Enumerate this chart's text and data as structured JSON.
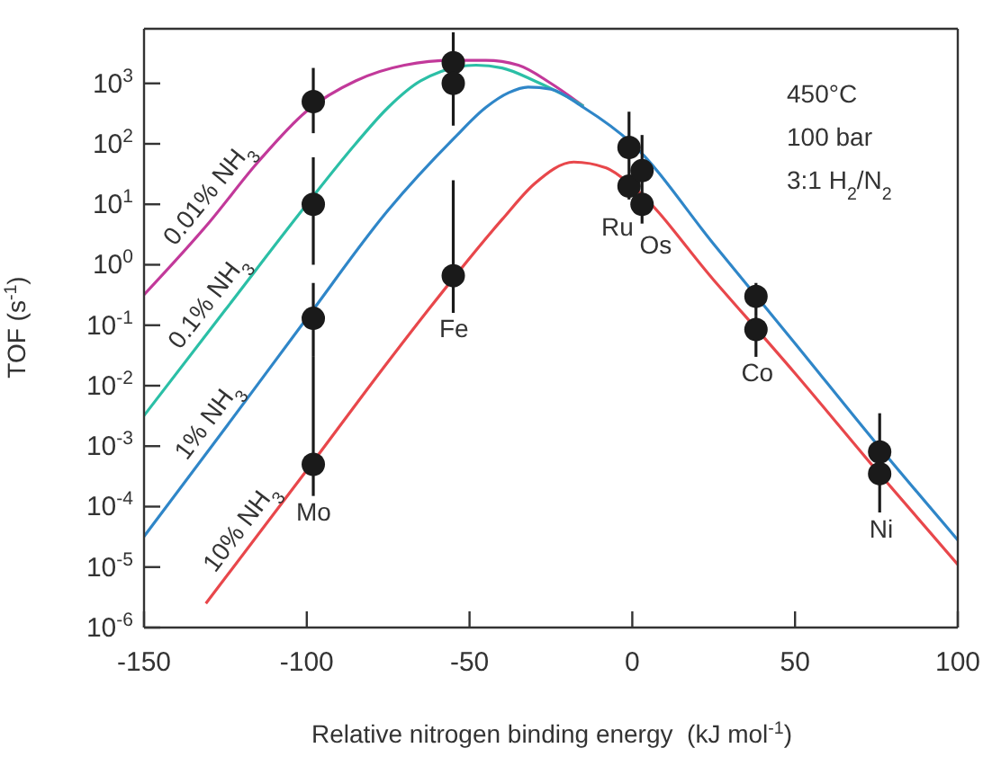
{
  "chart_data": {
    "type": "line",
    "xlabel": "Relative nitrogen binding energy  (kJ mol$^{-1}$)",
    "ylabel": "TOF (s$^{-1}$)",
    "xlim": [
      -150,
      100
    ],
    "xticks": [
      -150,
      -100,
      -50,
      0,
      50,
      100
    ],
    "ylim": [
      1e-06,
      8000
    ],
    "yticks": [
      {
        "value": 1e-06,
        "label": "10$^{-6}$"
      },
      {
        "value": 1e-05,
        "label": "10$^{-5}$"
      },
      {
        "value": 0.0001,
        "label": "10$^{-4}$"
      },
      {
        "value": 0.001,
        "label": "10$^{-3}$"
      },
      {
        "value": 0.01,
        "label": "10$^{-2}$"
      },
      {
        "value": 0.1,
        "label": "10$^{-1}$"
      },
      {
        "value": 1,
        "label": "10$^{0}$"
      },
      {
        "value": 10,
        "label": "10$^{1}$"
      },
      {
        "value": 100,
        "label": "10$^{2}$"
      },
      {
        "value": 1000,
        "label": "10$^{3}$"
      }
    ],
    "log": "y",
    "marker": "none",
    "line_style": "solid",
    "series": [
      {
        "name": "0.01% NH$_{3}$",
        "color": "#c2399a",
        "x": [
          -150,
          -130,
          -115,
          -100,
          -85,
          -70,
          -55,
          -45,
          -35,
          -25,
          -15
        ],
        "values": [
          0.32,
          5,
          50,
          350,
          1100,
          2000,
          2400,
          2400,
          2000,
          1000,
          420
        ]
      },
      {
        "name": "0.1% NH$_{3}$",
        "color": "#2bbfa6",
        "x": [
          -150,
          -125,
          -100,
          -85,
          -75,
          -65,
          -48,
          -40,
          -30,
          -20,
          -15
        ],
        "values": [
          0.0032,
          0.18,
          10,
          100,
          400,
          1100,
          2000,
          1800,
          1100,
          600,
          420
        ]
      },
      {
        "name": "1% NH$_{3}$",
        "color": "#2f86c8",
        "x": [
          -150,
          -125,
          -100,
          -75,
          -55,
          -45,
          -38,
          -32,
          -25,
          -15,
          0,
          25,
          50,
          75,
          100
        ],
        "values": [
          3.2e-05,
          0.002,
          0.13,
          8,
          120,
          400,
          700,
          870,
          800,
          400,
          100,
          2.2,
          0.05,
          0.0011,
          2.8e-05
        ]
      },
      {
        "name": "10% NH$_{3}$",
        "color": "#e8474b",
        "x": [
          -131,
          -100,
          -75,
          -62,
          -40,
          -30,
          -18,
          -8,
          0,
          25,
          50,
          75,
          100
        ],
        "values": [
          2.5e-06,
          0.0004,
          0.025,
          0.2,
          5.6,
          22,
          50,
          40,
          20,
          0.56,
          0.016,
          0.0004,
          1.1e-05
        ]
      },
      {
        "type": "scatter",
        "color": "#1a1a1a",
        "marker": "circle",
        "x": [
          -98,
          -98,
          -98,
          -98,
          -55,
          -55,
          -55,
          -1,
          -1,
          3,
          3,
          38,
          38,
          76,
          76
        ],
        "values": [
          500,
          10,
          0.13,
          0.0005,
          2200,
          1000,
          0.66,
          87,
          20,
          36,
          10,
          0.3,
          0.085,
          0.0008,
          0.00035
        ],
        "errors": [
          [
            150,
            1800
          ],
          [
            1,
            60
          ],
          [
            0.03,
            0.5
          ],
          [
            0.00015,
            0.03
          ],
          [
            1500,
            7000
          ],
          [
            200,
            1500
          ],
          [
            0.16,
            25
          ],
          [
            30,
            340
          ],
          [
            12,
            30
          ],
          [
            15,
            140
          ],
          [
            4.8,
            15
          ],
          [
            0.14,
            0.5
          ],
          [
            0.03,
            0.14
          ],
          [
            0.0005,
            0.0035
          ],
          [
            8e-05,
            0.0005
          ]
        ]
      }
    ],
    "annotations": [
      "450°C",
      "100 bar",
      "3:1 H$_{2}$/N$_{2}$",
      {
        "text": "Mo",
        "x": -98,
        "y": 0.0005
      },
      {
        "text": "Fe",
        "x": -55,
        "y": 0.66
      },
      {
        "text": "Ru",
        "x": -1,
        "y": 20
      },
      {
        "text": "Os",
        "x": 3,
        "y": 10
      },
      {
        "text": "Co",
        "x": 38,
        "y": 0.085
      },
      {
        "text": "Ni",
        "x": 76,
        "y": 0.00035
      }
    ]
  }
}
